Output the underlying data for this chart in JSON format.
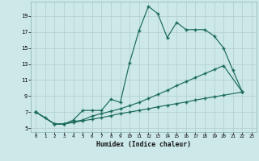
{
  "xlabel": "Humidex (Indice chaleur)",
  "bg_color": "#cce8e8",
  "grid_color": "#b0cccc",
  "line_color": "#1a6b5a",
  "xlim_min": -0.5,
  "xlim_max": 23.5,
  "ylim_min": 4.5,
  "ylim_max": 20.8,
  "yticks": [
    5,
    7,
    9,
    11,
    13,
    15,
    17,
    19
  ],
  "xticks": [
    0,
    1,
    2,
    3,
    4,
    5,
    6,
    7,
    8,
    9,
    10,
    11,
    12,
    13,
    14,
    15,
    16,
    17,
    18,
    19,
    20,
    21,
    22,
    23
  ],
  "s1_x": [
    0,
    1,
    2,
    3,
    4,
    5,
    6,
    7,
    8,
    9,
    10,
    11,
    12,
    13,
    14,
    15,
    16,
    17,
    18,
    19,
    20,
    21,
    22
  ],
  "s1_y": [
    7.0,
    6.3,
    5.5,
    5.5,
    6.0,
    7.2,
    7.2,
    7.2,
    8.6,
    8.2,
    13.2,
    17.2,
    20.2,
    19.3,
    16.3,
    18.2,
    17.3,
    17.3,
    17.3,
    16.5,
    15.0,
    12.2,
    9.5
  ],
  "s2_x": [
    0,
    2,
    3,
    4,
    5,
    6,
    7,
    8,
    9,
    10,
    11,
    12,
    13,
    14,
    15,
    16,
    17,
    18,
    19,
    20,
    22
  ],
  "s2_y": [
    7.0,
    5.5,
    5.5,
    5.8,
    6.0,
    6.5,
    6.8,
    7.1,
    7.4,
    7.8,
    8.2,
    8.7,
    9.2,
    9.7,
    10.3,
    10.8,
    11.3,
    11.8,
    12.3,
    12.8,
    9.5
  ],
  "s3_x": [
    0,
    2,
    3,
    4,
    5,
    6,
    7,
    8,
    9,
    10,
    11,
    12,
    13,
    14,
    15,
    16,
    17,
    18,
    19,
    20,
    22
  ],
  "s3_y": [
    7.0,
    5.5,
    5.5,
    5.7,
    5.9,
    6.1,
    6.3,
    6.55,
    6.8,
    7.0,
    7.2,
    7.4,
    7.65,
    7.85,
    8.05,
    8.25,
    8.5,
    8.7,
    8.9,
    9.1,
    9.5
  ]
}
